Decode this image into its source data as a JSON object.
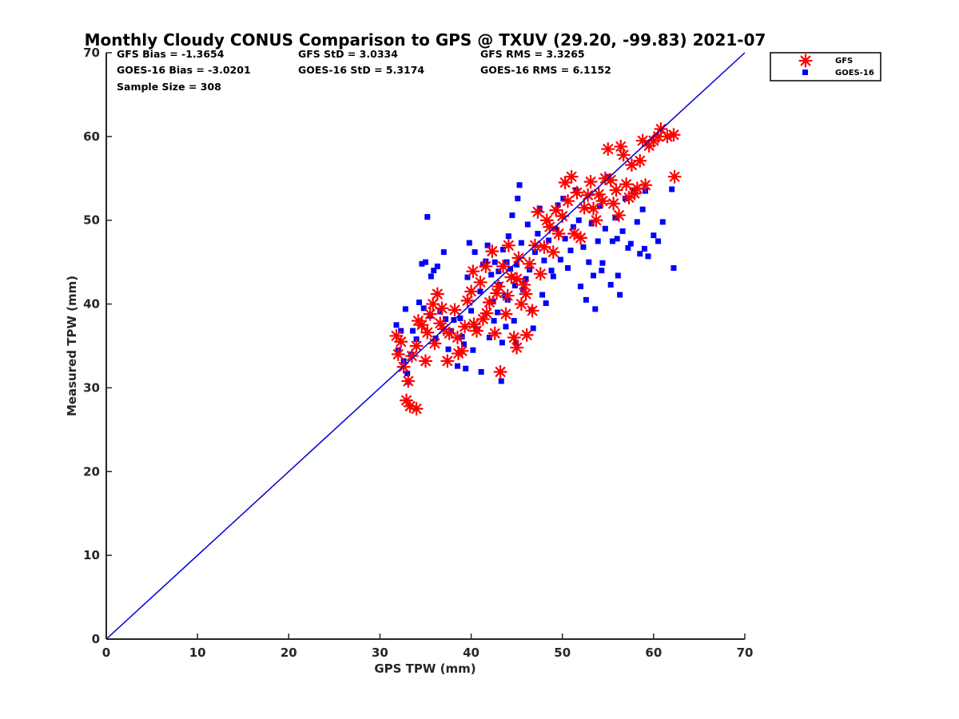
{
  "chart_data": {
    "type": "scatter",
    "title": "Monthly Cloudy CONUS Comparison to GPS @ TXUV (29.20, -99.83) 2021-07",
    "xlabel": "GPS TPW (mm)",
    "ylabel": "Measured TPW (mm)",
    "xlim": [
      0,
      70
    ],
    "ylim": [
      0,
      70
    ],
    "xticks": [
      "0",
      "10",
      "20",
      "30",
      "40",
      "50",
      "60",
      "70"
    ],
    "yticks": [
      "0",
      "10",
      "20",
      "30",
      "40",
      "50",
      "60",
      "70"
    ],
    "grid": false,
    "legend_position": "top-right outside",
    "stats": {
      "gfs_bias": "GFS Bias = -1.3654",
      "gfs_std": "GFS StD = 3.0334",
      "gfs_rms": "GFS RMS = 3.3265",
      "goes_bias": "GOES-16 Bias = -3.0201",
      "goes_std": "GOES-16 StD = 5.3174",
      "goes_rms": "GOES-16 RMS = 6.1152",
      "sample_size": "Sample Size = 308"
    },
    "reference_line": {
      "x": [
        0,
        70
      ],
      "y": [
        0,
        70
      ],
      "color": "#0000cc"
    },
    "series": [
      {
        "name": "GFS",
        "marker": "asterisk",
        "color": "#ff0000",
        "points": [
          [
            31.8,
            36.2
          ],
          [
            32.0,
            34.0
          ],
          [
            32.3,
            35.5
          ],
          [
            32.6,
            32.5
          ],
          [
            32.9,
            28.5
          ],
          [
            33.1,
            30.8
          ],
          [
            33.3,
            27.8
          ],
          [
            34.0,
            27.5
          ],
          [
            33.5,
            33.8
          ],
          [
            34.0,
            35.0
          ],
          [
            34.2,
            38.0
          ],
          [
            34.6,
            37.5
          ],
          [
            35.0,
            33.2
          ],
          [
            35.2,
            36.6
          ],
          [
            35.5,
            38.8
          ],
          [
            35.8,
            40.0
          ],
          [
            36.0,
            35.3
          ],
          [
            36.3,
            41.2
          ],
          [
            36.8,
            39.5
          ],
          [
            37.0,
            37.0
          ],
          [
            37.4,
            33.2
          ],
          [
            37.6,
            36.5
          ],
          [
            38.2,
            39.3
          ],
          [
            38.6,
            34.1
          ],
          [
            39.0,
            34.4
          ],
          [
            39.3,
            37.3
          ],
          [
            39.6,
            40.4
          ],
          [
            40.0,
            41.5
          ],
          [
            40.2,
            43.9
          ],
          [
            40.6,
            36.8
          ],
          [
            41.0,
            42.6
          ],
          [
            41.3,
            38.2
          ],
          [
            41.6,
            44.5
          ],
          [
            42.0,
            40.2
          ],
          [
            42.3,
            46.3
          ],
          [
            42.6,
            36.5
          ],
          [
            43.0,
            42.1
          ],
          [
            43.2,
            31.9
          ],
          [
            43.5,
            44.5
          ],
          [
            43.8,
            38.8
          ],
          [
            44.1,
            47.0
          ],
          [
            44.4,
            43.2
          ],
          [
            44.7,
            36.0
          ],
          [
            45.0,
            34.8
          ],
          [
            45.2,
            45.5
          ],
          [
            45.5,
            40.0
          ],
          [
            45.8,
            42.3
          ],
          [
            46.1,
            36.3
          ],
          [
            46.4,
            44.8
          ],
          [
            46.7,
            39.2
          ],
          [
            47.0,
            47.0
          ],
          [
            47.3,
            51.0
          ],
          [
            47.6,
            43.6
          ],
          [
            48.0,
            46.8
          ],
          [
            48.3,
            50.0
          ],
          [
            48.6,
            49.2
          ],
          [
            49.0,
            46.2
          ],
          [
            49.3,
            51.2
          ],
          [
            49.6,
            48.4
          ],
          [
            50.0,
            50.5
          ],
          [
            50.3,
            54.5
          ],
          [
            50.6,
            52.3
          ],
          [
            51.0,
            55.2
          ],
          [
            51.3,
            48.4
          ],
          [
            51.6,
            53.3
          ],
          [
            52.0,
            47.9
          ],
          [
            52.4,
            51.5
          ],
          [
            52.8,
            53.0
          ],
          [
            53.1,
            54.6
          ],
          [
            53.4,
            51.4
          ],
          [
            53.7,
            50.0
          ],
          [
            54.0,
            53.1
          ],
          [
            54.4,
            52.3
          ],
          [
            54.7,
            55.0
          ],
          [
            55.0,
            58.5
          ],
          [
            55.3,
            54.8
          ],
          [
            55.6,
            52.0
          ],
          [
            55.9,
            53.6
          ],
          [
            56.2,
            50.6
          ],
          [
            56.4,
            58.8
          ],
          [
            56.7,
            57.8
          ],
          [
            57.0,
            54.3
          ],
          [
            57.3,
            52.7
          ],
          [
            57.6,
            56.6
          ],
          [
            57.9,
            53.2
          ],
          [
            58.2,
            53.8
          ],
          [
            58.5,
            57.1
          ],
          [
            58.8,
            59.5
          ],
          [
            59.1,
            54.2
          ],
          [
            59.5,
            58.9
          ],
          [
            60.0,
            59.5
          ],
          [
            60.5,
            60.0
          ],
          [
            60.8,
            60.9
          ],
          [
            61.5,
            60.0
          ],
          [
            62.2,
            60.2
          ],
          [
            62.3,
            55.2
          ],
          [
            46.0,
            41.2
          ],
          [
            45.0,
            43.0
          ],
          [
            44.0,
            41.0
          ],
          [
            42.8,
            41.3
          ],
          [
            41.7,
            38.9
          ],
          [
            40.3,
            37.6
          ],
          [
            38.5,
            36.0
          ],
          [
            36.6,
            37.7
          ]
        ]
      },
      {
        "name": "GOES-16",
        "marker": "square",
        "color": "#0000ff",
        "points": [
          [
            31.8,
            37.5
          ],
          [
            32.0,
            34.5
          ],
          [
            32.3,
            36.8
          ],
          [
            32.6,
            33.2
          ],
          [
            32.8,
            39.4
          ],
          [
            33.0,
            31.7
          ],
          [
            33.1,
            30.7
          ],
          [
            33.4,
            34.0
          ],
          [
            33.6,
            36.8
          ],
          [
            34.0,
            35.8
          ],
          [
            34.3,
            40.2
          ],
          [
            34.6,
            44.8
          ],
          [
            34.8,
            39.5
          ],
          [
            35.0,
            45.0
          ],
          [
            35.2,
            50.4
          ],
          [
            35.5,
            38.6
          ],
          [
            35.6,
            43.3
          ],
          [
            35.9,
            44.0
          ],
          [
            36.1,
            35.9
          ],
          [
            36.3,
            44.5
          ],
          [
            36.6,
            39.1
          ],
          [
            37.0,
            46.2
          ],
          [
            37.2,
            38.2
          ],
          [
            37.5,
            34.6
          ],
          [
            37.8,
            36.8
          ],
          [
            38.1,
            38.1
          ],
          [
            38.5,
            32.6
          ],
          [
            38.8,
            38.3
          ],
          [
            39.0,
            36.1
          ],
          [
            39.2,
            35.2
          ],
          [
            39.4,
            32.3
          ],
          [
            39.6,
            43.2
          ],
          [
            39.8,
            47.3
          ],
          [
            40.0,
            39.2
          ],
          [
            40.2,
            34.5
          ],
          [
            40.4,
            46.2
          ],
          [
            40.7,
            37.0
          ],
          [
            41.0,
            41.5
          ],
          [
            41.1,
            31.9
          ],
          [
            41.3,
            44.7
          ],
          [
            41.6,
            45.1
          ],
          [
            41.8,
            47.0
          ],
          [
            42.0,
            36.0
          ],
          [
            42.2,
            43.5
          ],
          [
            42.4,
            40.3
          ],
          [
            42.6,
            45.0
          ],
          [
            42.9,
            39.0
          ],
          [
            43.1,
            42.3
          ],
          [
            43.3,
            30.8
          ],
          [
            43.5,
            46.5
          ],
          [
            43.7,
            41.0
          ],
          [
            43.9,
            45.0
          ],
          [
            44.1,
            48.1
          ],
          [
            44.3,
            44.2
          ],
          [
            44.5,
            50.6
          ],
          [
            44.7,
            38.0
          ],
          [
            44.9,
            35.4
          ],
          [
            45.1,
            52.6
          ],
          [
            45.3,
            54.2
          ],
          [
            45.5,
            47.3
          ],
          [
            45.7,
            41.7
          ],
          [
            45.9,
            42.8
          ],
          [
            46.2,
            49.5
          ],
          [
            46.4,
            44.1
          ],
          [
            46.6,
            39.3
          ],
          [
            46.8,
            37.1
          ],
          [
            47.0,
            46.2
          ],
          [
            47.3,
            48.4
          ],
          [
            47.5,
            51.4
          ],
          [
            47.8,
            41.1
          ],
          [
            48.0,
            45.2
          ],
          [
            48.2,
            40.1
          ],
          [
            48.5,
            47.6
          ],
          [
            48.8,
            44.0
          ],
          [
            49.0,
            43.3
          ],
          [
            49.2,
            49.0
          ],
          [
            49.5,
            51.8
          ],
          [
            49.8,
            45.3
          ],
          [
            50.1,
            52.6
          ],
          [
            50.3,
            47.8
          ],
          [
            50.6,
            44.3
          ],
          [
            50.9,
            46.4
          ],
          [
            51.2,
            49.2
          ],
          [
            51.5,
            53.6
          ],
          [
            51.8,
            50.0
          ],
          [
            52.0,
            42.1
          ],
          [
            52.3,
            46.8
          ],
          [
            52.6,
            40.5
          ],
          [
            52.9,
            45.0
          ],
          [
            53.2,
            49.6
          ],
          [
            53.4,
            43.4
          ],
          [
            53.6,
            39.4
          ],
          [
            53.9,
            47.5
          ],
          [
            54.1,
            51.7
          ],
          [
            54.4,
            44.9
          ],
          [
            54.7,
            49.0
          ],
          [
            55.0,
            55.2
          ],
          [
            55.3,
            42.3
          ],
          [
            55.5,
            47.5
          ],
          [
            55.8,
            50.3
          ],
          [
            56.1,
            43.4
          ],
          [
            56.3,
            41.1
          ],
          [
            56.6,
            48.7
          ],
          [
            56.9,
            52.6
          ],
          [
            57.2,
            46.7
          ],
          [
            57.5,
            47.2
          ],
          [
            57.8,
            53.6
          ],
          [
            58.2,
            49.8
          ],
          [
            58.5,
            46.0
          ],
          [
            58.8,
            51.3
          ],
          [
            59.1,
            53.5
          ],
          [
            59.4,
            45.7
          ],
          [
            60.0,
            48.2
          ],
          [
            60.5,
            47.5
          ],
          [
            61.0,
            49.8
          ],
          [
            62.0,
            53.7
          ],
          [
            62.2,
            44.3
          ],
          [
            59.0,
            46.6
          ],
          [
            56.0,
            47.8
          ],
          [
            54.3,
            44.0
          ],
          [
            43.0,
            43.9
          ],
          [
            44.0,
            40.5
          ],
          [
            45.0,
            44.7
          ],
          [
            42.5,
            38.0
          ],
          [
            43.8,
            37.3
          ],
          [
            44.8,
            42.2
          ],
          [
            46.0,
            43.0
          ],
          [
            43.4,
            35.4
          ]
        ]
      }
    ]
  }
}
